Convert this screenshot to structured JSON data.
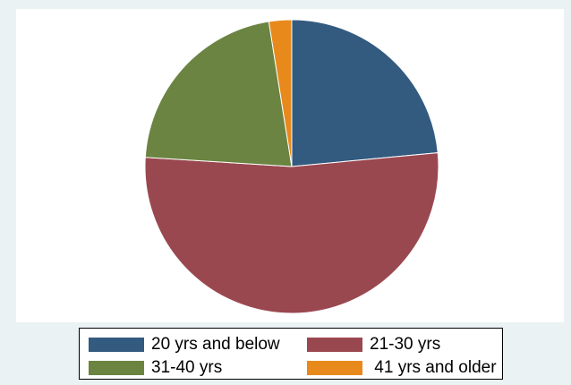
{
  "chart_data": {
    "type": "pie",
    "title": "",
    "slices": [
      {
        "label": "20 yrs and below",
        "value": 23.5,
        "color": "#335a7f"
      },
      {
        "label": "21-30 yrs",
        "value": 52.5,
        "color": "#9a4850"
      },
      {
        "label": "31-40 yrs",
        "value": 21.5,
        "color": "#6b8442"
      },
      {
        "label": " 41 yrs and older",
        "value": 2.5,
        "color": "#e8891c"
      }
    ],
    "legend_position": "bottom",
    "start": "12 o'clock",
    "direction": "clockwise"
  }
}
